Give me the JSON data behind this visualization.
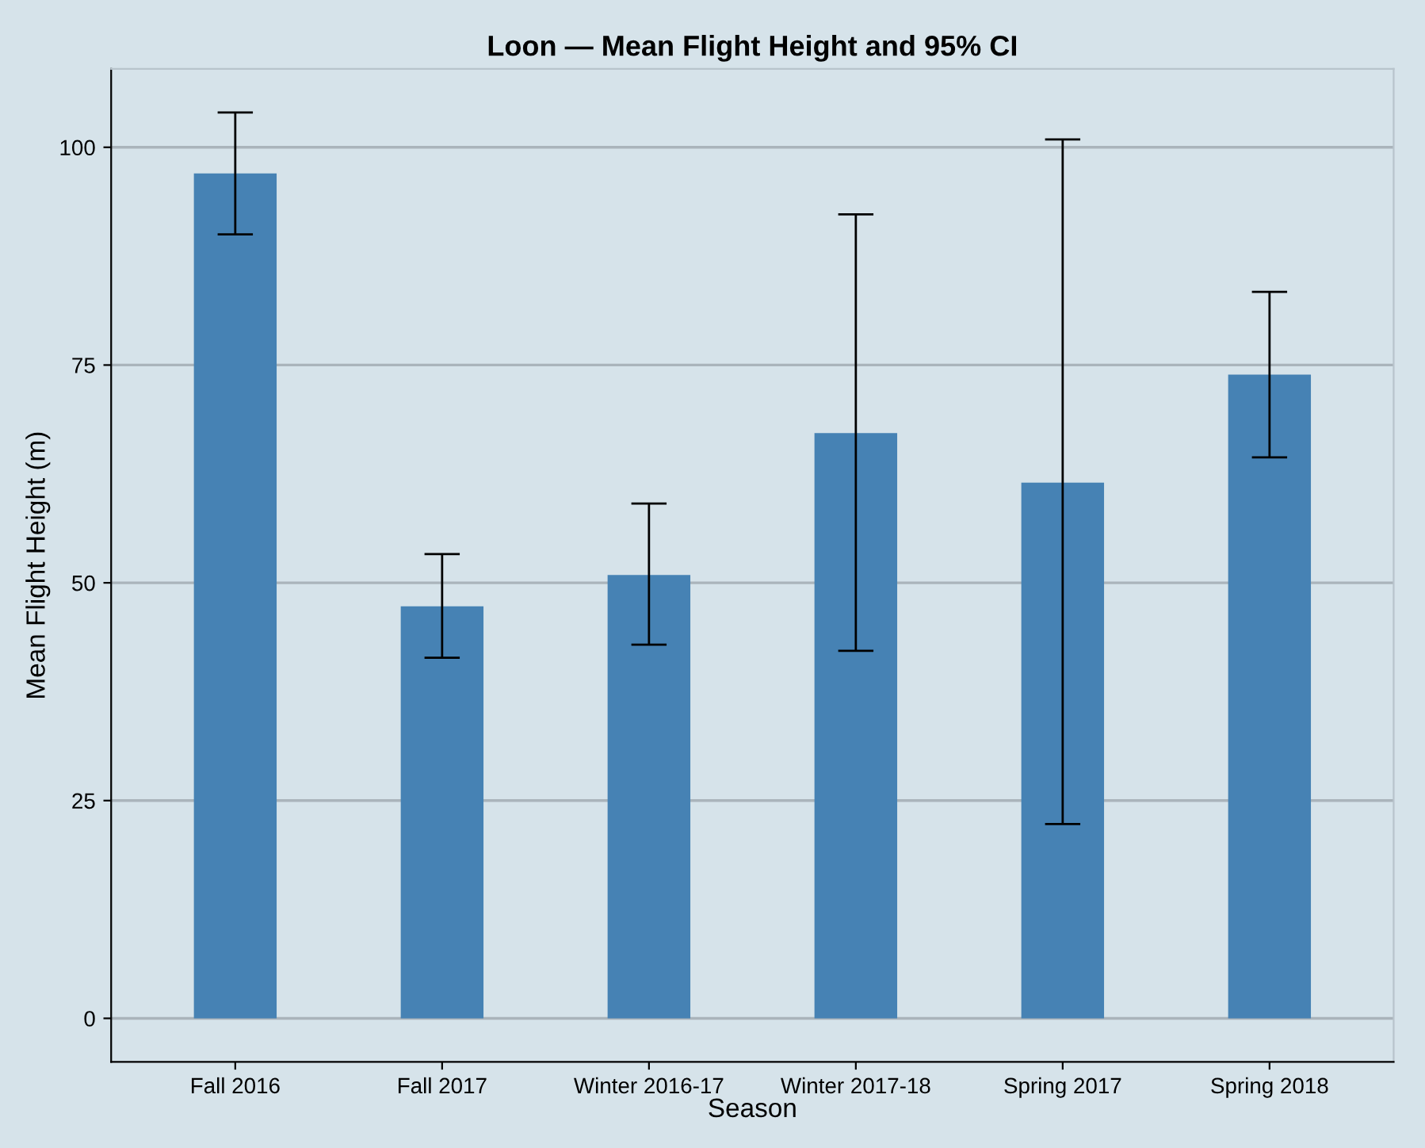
{
  "chart_data": {
    "type": "bar",
    "title": "Loon — Mean Flight Height and 95% CI",
    "xlabel": "Season",
    "ylabel": "Mean Flight Height (m)",
    "categories": [
      "Fall 2016",
      "Fall 2017",
      "Winter 2016-17",
      "Winter 2017-18",
      "Spring 2017",
      "Spring 2018"
    ],
    "values": [
      97.0,
      47.3,
      50.9,
      67.2,
      61.5,
      73.9
    ],
    "errors": [
      [
        90.0,
        104.0
      ],
      [
        41.4,
        53.3
      ],
      [
        42.9,
        59.1
      ],
      [
        42.2,
        92.3
      ],
      [
        22.3,
        100.9
      ],
      [
        64.4,
        83.4
      ]
    ],
    "color": "#4682b4",
    "ylim": [
      -5,
      109
    ],
    "yticks": [
      0,
      25,
      50,
      75,
      100
    ],
    "grid": "y"
  }
}
